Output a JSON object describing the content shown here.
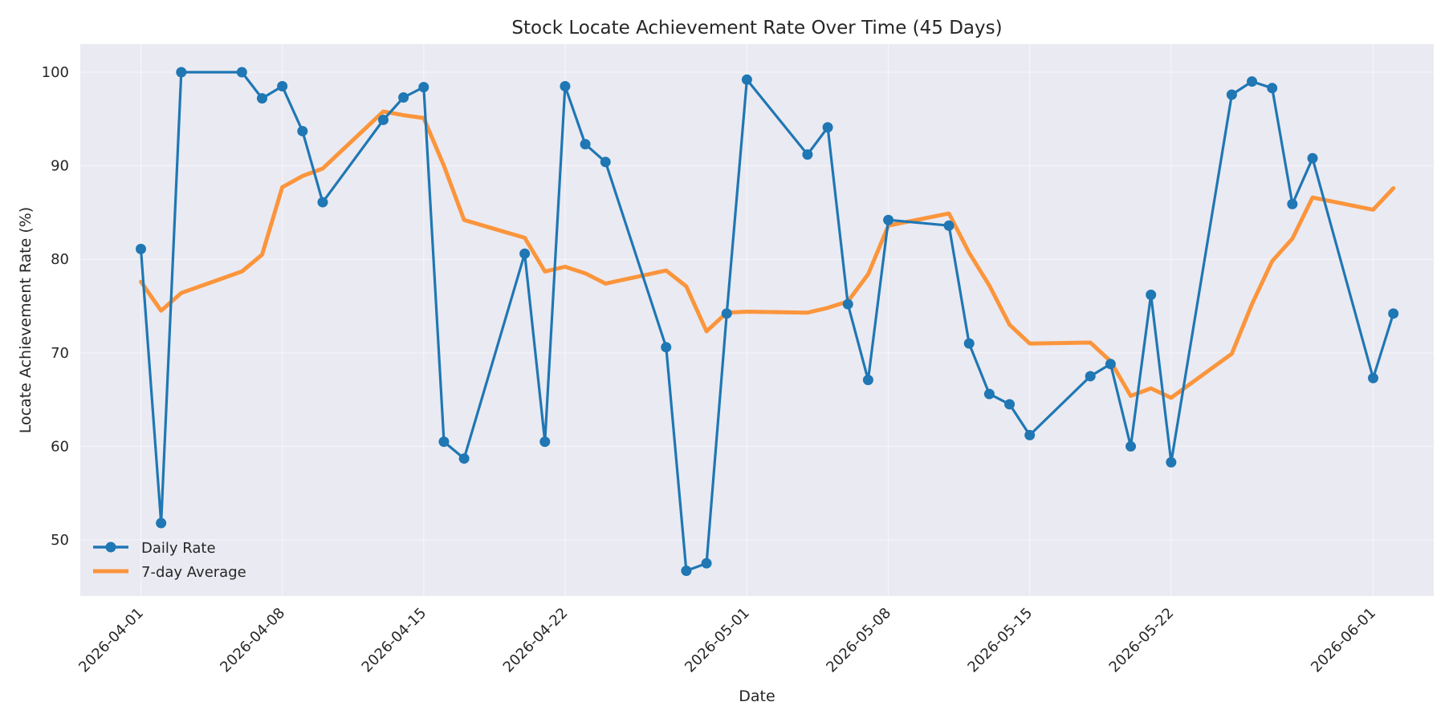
{
  "chart_data": {
    "type": "line",
    "title": "Stock Locate Achievement Rate Over Time (45 Days)",
    "xlabel": "Date",
    "ylabel": "Locate Achievement Rate (%)",
    "x_ticks": [
      "2026-04-01",
      "2026-04-08",
      "2026-04-15",
      "2026-04-22",
      "2026-05-01",
      "2026-05-08",
      "2026-05-15",
      "2026-05-22",
      "2026-06-01"
    ],
    "y_ticks": [
      50,
      60,
      70,
      80,
      90,
      100
    ],
    "ylim": [
      44,
      103
    ],
    "xlim": [
      "2026-03-29",
      "2026-06-04"
    ],
    "grid": true,
    "legend": "lower-left",
    "series": [
      {
        "name": "Daily Rate",
        "color": "#1f77b4",
        "marker": "circle",
        "x": [
          "2026-04-01",
          "2026-04-02",
          "2026-04-03",
          "2026-04-06",
          "2026-04-07",
          "2026-04-08",
          "2026-04-09",
          "2026-04-10",
          "2026-04-13",
          "2026-04-14",
          "2026-04-15",
          "2026-04-16",
          "2026-04-17",
          "2026-04-20",
          "2026-04-21",
          "2026-04-22",
          "2026-04-23",
          "2026-04-24",
          "2026-04-27",
          "2026-04-28",
          "2026-04-29",
          "2026-04-30",
          "2026-05-01",
          "2026-05-04",
          "2026-05-05",
          "2026-05-06",
          "2026-05-07",
          "2026-05-08",
          "2026-05-11",
          "2026-05-12",
          "2026-05-13",
          "2026-05-14",
          "2026-05-15",
          "2026-05-18",
          "2026-05-19",
          "2026-05-20",
          "2026-05-21",
          "2026-05-22",
          "2026-05-25",
          "2026-05-26",
          "2026-05-27",
          "2026-05-28",
          "2026-05-29",
          "2026-06-01",
          "2026-06-02"
        ],
        "values": [
          81.1,
          51.8,
          100.0,
          100.0,
          97.2,
          98.5,
          93.7,
          86.1,
          94.9,
          97.3,
          98.4,
          60.5,
          58.7,
          80.6,
          60.5,
          98.5,
          92.3,
          90.4,
          70.6,
          46.7,
          47.5,
          74.2,
          99.2,
          91.2,
          94.1,
          75.2,
          67.1,
          84.2,
          83.6,
          71.0,
          65.6,
          64.5,
          61.2,
          67.5,
          68.8,
          60.0,
          76.2,
          58.3,
          97.6,
          99.0,
          98.3,
          85.9,
          90.8,
          67.3,
          74.2
        ]
      },
      {
        "name": "7-day Average",
        "color": "#ff7f0e",
        "x": [
          "2026-04-01",
          "2026-04-02",
          "2026-04-03",
          "2026-04-06",
          "2026-04-07",
          "2026-04-08",
          "2026-04-09",
          "2026-04-10",
          "2026-04-13",
          "2026-04-14",
          "2026-04-15",
          "2026-04-16",
          "2026-04-17",
          "2026-04-20",
          "2026-04-21",
          "2026-04-22",
          "2026-04-23",
          "2026-04-24",
          "2026-04-27",
          "2026-04-28",
          "2026-04-29",
          "2026-04-30",
          "2026-05-01",
          "2026-05-04",
          "2026-05-05",
          "2026-05-06",
          "2026-05-07",
          "2026-05-08",
          "2026-05-11",
          "2026-05-12",
          "2026-05-13",
          "2026-05-14",
          "2026-05-15",
          "2026-05-18",
          "2026-05-19",
          "2026-05-20",
          "2026-05-21",
          "2026-05-22",
          "2026-05-25",
          "2026-05-26",
          "2026-05-27",
          "2026-05-28",
          "2026-05-29",
          "2026-06-01",
          "2026-06-02"
        ],
        "values": [
          77.6,
          74.5,
          76.4,
          78.7,
          80.5,
          87.7,
          88.9,
          89.7,
          95.8,
          95.4,
          95.1,
          90.0,
          84.2,
          82.3,
          78.7,
          79.2,
          78.5,
          77.4,
          78.8,
          77.1,
          72.3,
          74.3,
          74.4,
          74.3,
          74.8,
          75.5,
          78.4,
          83.6,
          84.9,
          80.7,
          77.2,
          73.0,
          71.0,
          71.1,
          69.1,
          65.4,
          66.2,
          65.2,
          69.9,
          75.2,
          79.8,
          82.2,
          86.6,
          85.3,
          87.6
        ]
      }
    ]
  }
}
